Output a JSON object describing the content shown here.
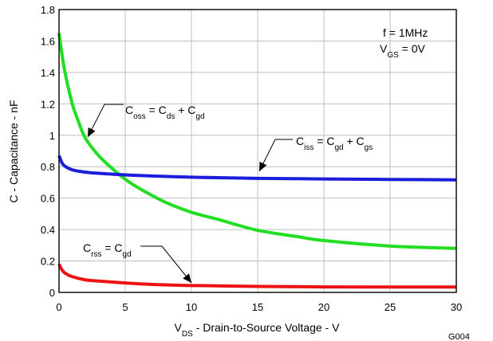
{
  "chart_data": {
    "type": "line",
    "xlabel": {
      "pre": "V",
      "sub": "DS",
      "post": " - Drain-to-Source Voltage - V"
    },
    "ylabel": "C - Capacitance - nF",
    "xlim": [
      0,
      30
    ],
    "ylim": [
      0,
      1.8
    ],
    "xticks": [
      "0",
      "5",
      "10",
      "15",
      "20",
      "25",
      "30"
    ],
    "yticks": [
      "0",
      "0.2",
      "0.4",
      "0.6",
      "0.8",
      "1",
      "1.2",
      "1.4",
      "1.6",
      "1.8"
    ],
    "grid": true,
    "conditions": {
      "freq": "f = 1MHz",
      "vgs": {
        "pre": "V",
        "sub": "GS",
        "post": " = 0V"
      }
    },
    "figure_code": "G004",
    "series": [
      {
        "id": "coss",
        "color": "#22dd22",
        "label": [
          {
            "t": "C"
          },
          {
            "t": "oss",
            "sub": true
          },
          {
            "t": " = C"
          },
          {
            "t": "ds",
            "sub": true
          },
          {
            "t": " + C"
          },
          {
            "t": "gd",
            "sub": true
          }
        ],
        "x": [
          0,
          0.25,
          0.5,
          1,
          1.5,
          2,
          3,
          4,
          5,
          6,
          8,
          10,
          12,
          15,
          18,
          20,
          25,
          30
        ],
        "y": [
          1.65,
          1.5,
          1.38,
          1.2,
          1.08,
          0.98,
          0.87,
          0.79,
          0.72,
          0.665,
          0.575,
          0.51,
          0.465,
          0.395,
          0.355,
          0.33,
          0.295,
          0.28
        ]
      },
      {
        "id": "ciss",
        "color": "#1c1cdd",
        "label": [
          {
            "t": "C"
          },
          {
            "t": "iss",
            "sub": true
          },
          {
            "t": " = C"
          },
          {
            "t": "gd",
            "sub": true
          },
          {
            "t": " + C"
          },
          {
            "t": "gs",
            "sub": true
          }
        ],
        "x": [
          0,
          0.25,
          0.5,
          1,
          2,
          3,
          5,
          7,
          10,
          15,
          20,
          25,
          30
        ],
        "y": [
          0.87,
          0.82,
          0.8,
          0.78,
          0.765,
          0.758,
          0.748,
          0.741,
          0.733,
          0.726,
          0.722,
          0.719,
          0.716
        ]
      },
      {
        "id": "crss",
        "color": "#ee1111",
        "label": [
          {
            "t": "C"
          },
          {
            "t": "rss",
            "sub": true
          },
          {
            "t": " = C"
          },
          {
            "t": "gd",
            "sub": true
          }
        ],
        "x": [
          0,
          0.25,
          0.5,
          1,
          2,
          3,
          5,
          7,
          10,
          15,
          20,
          25,
          30
        ],
        "y": [
          0.18,
          0.14,
          0.12,
          0.1,
          0.08,
          0.072,
          0.06,
          0.051,
          0.044,
          0.038,
          0.035,
          0.034,
          0.034
        ]
      }
    ]
  }
}
